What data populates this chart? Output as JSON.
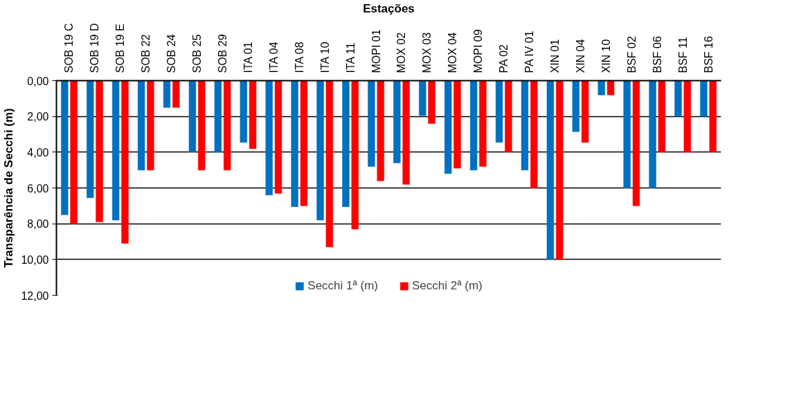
{
  "chart_data": {
    "type": "bar",
    "xlabel": "Estações",
    "ylabel": "Transparência de Secchi (m)",
    "categories": [
      "SOB 19 C",
      "SOB 19 D",
      "SOB 19 E",
      "SOB 22",
      "SOB 24",
      "SOB 25",
      "SOB 29",
      "ITA 01",
      "ITA 04",
      "ITA 08",
      "ITA 10",
      "ITA 11",
      "MOPI 01",
      "MOX 02",
      "MOX 03",
      "MOX 04",
      "MOPI 09",
      "PA 02",
      "PA IV 01",
      "XIN 01",
      "XIN 04",
      "XIN 10",
      "BSF 02",
      "BSF 06",
      "BSF 11",
      "BSF 16"
    ],
    "series": [
      {
        "name": "Secchi 1ª (m)",
        "color": "#0070c0",
        "values": [
          7.5,
          6.55,
          7.8,
          5.0,
          1.5,
          4.0,
          4.0,
          3.45,
          6.4,
          7.05,
          7.8,
          7.05,
          4.8,
          4.6,
          1.95,
          5.2,
          5.0,
          3.45,
          5.0,
          10.0,
          2.85,
          0.8,
          6.0,
          6.0,
          2.0,
          2.0
        ]
      },
      {
        "name": "Secchi 2ª (m)",
        "color": "#ff0000",
        "values": [
          8.0,
          7.9,
          9.1,
          5.0,
          1.5,
          5.0,
          5.0,
          3.8,
          6.3,
          7.0,
          9.3,
          8.3,
          5.6,
          5.8,
          2.4,
          4.9,
          4.8,
          4.0,
          6.0,
          10.0,
          3.45,
          0.8,
          7.0,
          4.0,
          4.0,
          4.0
        ]
      }
    ],
    "ylim": [
      12,
      0
    ],
    "yticks": [
      {
        "value": 0,
        "label": "0,00"
      },
      {
        "value": 2,
        "label": "2,00"
      },
      {
        "value": 4,
        "label": "4,00"
      },
      {
        "value": 6,
        "label": "6,00"
      },
      {
        "value": 8,
        "label": "8,00"
      },
      {
        "value": 10,
        "label": "10,00"
      },
      {
        "value": 12,
        "label": "12,00"
      }
    ],
    "grid": "y",
    "legend": "bottom"
  }
}
